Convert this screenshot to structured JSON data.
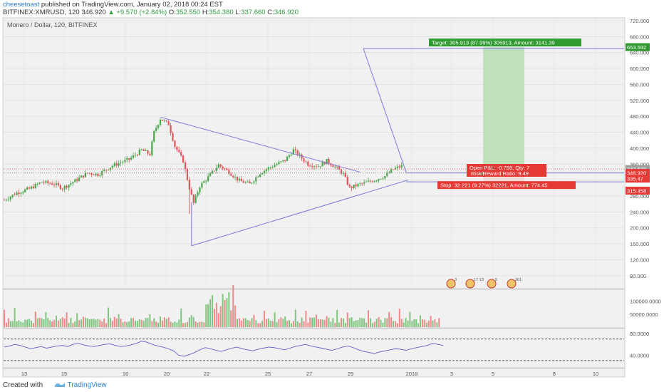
{
  "header": {
    "author": "cheesetoast",
    "published": "published on TradingView.com, January 02, 2018 00:24 EST",
    "symbol": "BITFINEX:XMRUSD, 120",
    "last": "346.920",
    "change_arrow": "▲",
    "change": "+9.570 (+2.84%)",
    "o_label": "O:",
    "o": "352.550",
    "h_label": "H:",
    "h": "354.380",
    "l_label": "L:",
    "l": "337.660",
    "c_label": "C:",
    "c": "346.920"
  },
  "footer": {
    "created_with": "Created with",
    "brand": "TradingView",
    "brand_icon": "tradingview-logo-icon"
  },
  "colors": {
    "up": "#4aa64a",
    "down": "#e0545a",
    "target_zone": "#bfe0ba",
    "drawing": "#7a7ad8",
    "rsi": "#5e5ec8",
    "target_label": "#2f9a2f",
    "stop_label": "#e53935"
  },
  "chart_data": [
    {
      "type": "candlestick",
      "title": "Monero / Dollar, 120, BITFINEX",
      "x_ticks": [
        "13",
        "15",
        "16",
        "20",
        "22",
        "25",
        "27",
        "29",
        "2018",
        "3",
        "5",
        "8",
        "10"
      ],
      "y_ticks": [
        "80.000",
        "120.000",
        "160.000",
        "200.000",
        "240.000",
        "280.000",
        "320.000",
        "360.000",
        "400.000",
        "440.000",
        "480.000",
        "520.000",
        "560.000",
        "600.000",
        "640.000",
        "680.000",
        "720.000"
      ],
      "ylim": [
        40,
        730
      ],
      "grid": true,
      "price_path": [
        [
          0,
          270
        ],
        [
          6,
          288
        ],
        [
          12,
          298
        ],
        [
          18,
          315
        ],
        [
          24,
          310
        ],
        [
          28,
          300
        ],
        [
          34,
          318
        ],
        [
          40,
          338
        ],
        [
          45,
          334
        ],
        [
          52,
          356
        ],
        [
          60,
          372
        ],
        [
          66,
          395
        ],
        [
          70,
          385
        ],
        [
          72,
          440
        ],
        [
          75,
          474
        ],
        [
          79,
          460
        ],
        [
          82,
          405
        ],
        [
          86,
          368
        ],
        [
          89,
          300
        ],
        [
          91,
          262
        ],
        [
          94,
          305
        ],
        [
          98,
          327
        ],
        [
          103,
          358
        ],
        [
          108,
          340
        ],
        [
          113,
          318
        ],
        [
          118,
          310
        ],
        [
          123,
          338
        ],
        [
          127,
          350
        ],
        [
          131,
          360
        ],
        [
          135,
          370
        ],
        [
          139,
          395
        ],
        [
          142,
          380
        ],
        [
          146,
          360
        ],
        [
          151,
          355
        ],
        [
          155,
          368
        ],
        [
          159,
          353
        ],
        [
          163,
          335
        ],
        [
          166,
          300
        ],
        [
          170,
          308
        ],
        [
          175,
          315
        ],
        [
          179,
          322
        ],
        [
          183,
          330
        ],
        [
          187,
          347
        ],
        [
          191,
          355
        ]
      ],
      "price_markers": {
        "current": "347.679",
        "last": "346.920",
        "below": "335.47",
        "stop": "315.458",
        "target": "653.592"
      },
      "triangle_upper": [
        [
          75,
          478
        ],
        [
          171,
          340
        ]
      ],
      "triangle_lower": [
        [
          90,
          155
        ],
        [
          194,
          320
        ]
      ],
      "projection": {
        "top_price": 650,
        "bottom_price": 340
      },
      "position": {
        "entry": 338,
        "target": 653.592,
        "stop": 315.458,
        "target_label": "Target: 305.913 (87.99%) 305913, Amount: 3141.39",
        "stop_label": "Stop: 32.221 (9.27%) 32221, Amount: 774.45",
        "pl_label": "Open P&L: -0.759, Qty: 7",
        "rr_label": "Risk/Reward Ratio: 9.49"
      },
      "event_badges": [
        "3",
        "17",
        "13",
        "5",
        "361"
      ]
    },
    {
      "type": "bar",
      "title": "Volume",
      "y_ticks": [
        "50000.0000",
        "100000.0000"
      ],
      "ylim": [
        0,
        135000
      ],
      "values_note": "pattern reconstructed",
      "peak": 135000
    },
    {
      "type": "line",
      "title": "RSI",
      "y_ticks": [
        "40.0000",
        "80.0000"
      ],
      "ylim": [
        18,
        88
      ],
      "bands": [
        30,
        70
      ],
      "values": [
        55,
        57,
        60,
        58,
        55,
        52,
        54,
        56,
        53,
        55,
        57,
        58,
        56,
        60,
        62,
        59,
        57,
        56,
        58,
        60,
        61,
        58,
        56,
        57,
        59,
        62,
        66,
        64,
        60,
        57,
        55,
        52,
        48,
        40,
        38,
        41,
        45,
        50,
        54,
        52,
        49,
        47,
        50,
        53,
        55,
        52,
        50,
        48,
        51,
        53,
        55,
        54,
        52,
        50,
        53,
        56,
        58,
        60,
        57,
        55,
        53,
        51,
        49,
        52,
        55,
        57,
        54,
        50,
        47,
        45,
        43,
        46,
        48,
        50,
        52,
        51,
        49,
        52,
        54,
        56,
        58,
        62,
        60,
        58
      ]
    }
  ]
}
